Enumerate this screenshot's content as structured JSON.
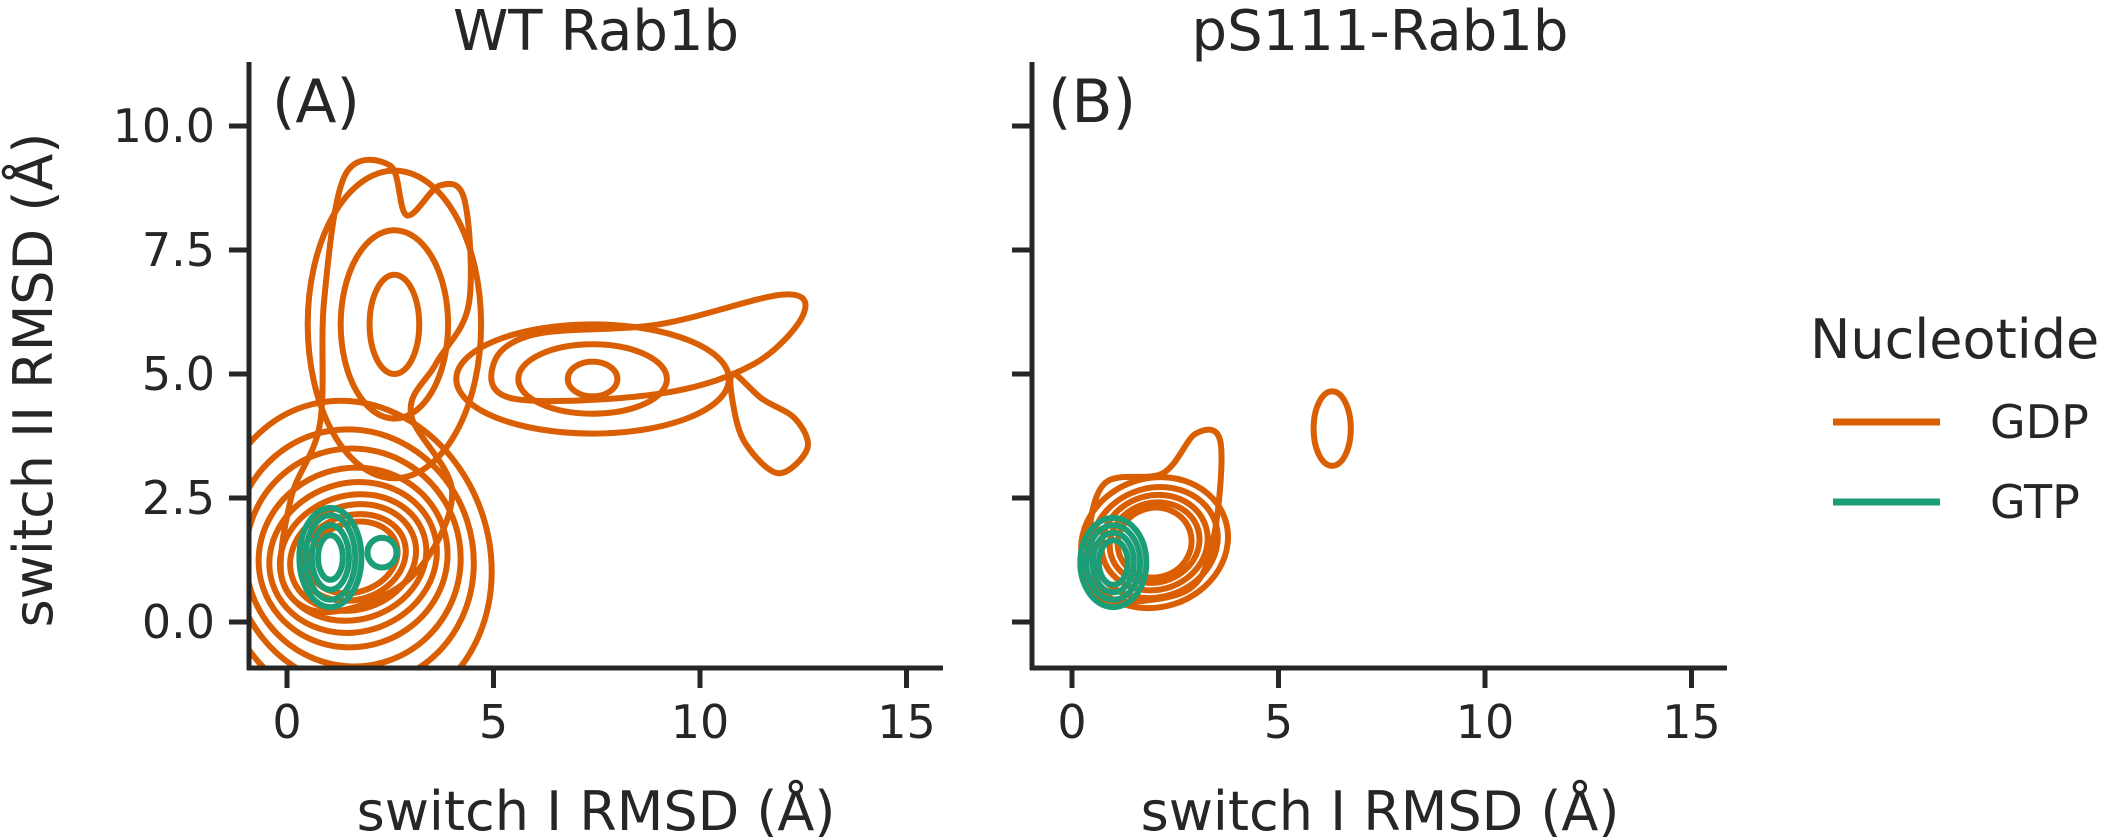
{
  "colors": {
    "GDP": "#d95f02",
    "GTP": "#1b9e77",
    "axis": "#262626"
  },
  "legend": {
    "title": "Nucleotide",
    "entries": [
      {
        "label": "GDP",
        "color": "#d95f02"
      },
      {
        "label": "GTP",
        "color": "#1b9e77"
      }
    ]
  },
  "chart_data": [
    {
      "type": "kde-contour",
      "panel_letter": "(A)",
      "title": "WT Rab1b",
      "xlabel": "switch I RMSD (Å)",
      "ylabel": "switch II RMSD (Å)",
      "xlim": [
        -0.9,
        16.0
      ],
      "ylim": [
        -1.0,
        11.2
      ],
      "xticks": [
        0,
        5,
        10,
        15
      ],
      "yticks": [
        0.0,
        2.5,
        5.0,
        7.5,
        10.0
      ],
      "yticklabels": [
        "0.0",
        "2.5",
        "5.0",
        "7.5",
        "10.0"
      ],
      "series": [
        {
          "name": "GDP",
          "modes": [
            {
              "center": [
                1.6,
                1.3
              ],
              "levels": [
                [
                  1.1,
                  0.7
                ],
                [
                  1.3,
                  0.85
                ],
                [
                  1.55,
                  1.05
                ],
                [
                  1.8,
                  1.25
                ],
                [
                  2.05,
                  1.5
                ],
                [
                  2.3,
                  1.8
                ],
                [
                  2.6,
                  2.2
                ],
                [
                  2.9,
                  2.6
                ],
                [
                  3.3,
                  3.2
                ]
              ]
            },
            {
              "center": [
                2.6,
                6.0
              ],
              "levels": [
                [
                  0.6,
                  1.0
                ],
                [
                  1.3,
                  1.9
                ],
                [
                  2.1,
                  3.1
                ]
              ]
            },
            {
              "center": [
                7.4,
                4.9
              ],
              "levels": [
                [
                  0.6,
                  0.35
                ],
                [
                  1.8,
                  0.7
                ],
                [
                  3.3,
                  1.1
                ]
              ]
            }
          ],
          "outer_contour": [
            [
              1.0,
              0.2
            ],
            [
              3.0,
              0.9
            ],
            [
              4.0,
              2.6
            ],
            [
              3.0,
              4.2
            ],
            [
              3.6,
              5.2
            ],
            [
              4.4,
              6.4
            ],
            [
              4.3,
              8.5
            ],
            [
              3.7,
              8.8
            ],
            [
              2.9,
              8.2
            ],
            [
              2.5,
              9.2
            ],
            [
              1.4,
              9.0
            ],
            [
              0.9,
              6.5
            ],
            [
              0.8,
              4.0
            ],
            [
              0.1,
              2.5
            ],
            [
              -0.1,
              0.8
            ]
          ],
          "far_contour": [
            [
              5.5,
              4.5
            ],
            [
              9.0,
              4.6
            ],
            [
              11.3,
              5.2
            ],
            [
              12.5,
              6.2
            ],
            [
              12.0,
              6.6
            ],
            [
              9.0,
              6.0
            ],
            [
              6.0,
              5.8
            ],
            [
              5.0,
              5.2
            ]
          ],
          "tail_contour": [
            [
              10.8,
              5.0
            ],
            [
              11.5,
              4.5
            ],
            [
              12.3,
              4.1
            ],
            [
              12.6,
              3.5
            ],
            [
              11.9,
              3.0
            ],
            [
              11.1,
              3.6
            ],
            [
              10.8,
              4.4
            ]
          ]
        },
        {
          "name": "GTP",
          "modes": [
            {
              "center": [
                1.05,
                1.3
              ],
              "levels": [
                [
                  0.3,
                  0.45
                ],
                [
                  0.45,
                  0.65
                ],
                [
                  0.6,
                  0.85
                ],
                [
                  0.75,
                  1.0
                ]
              ],
              "filled": true
            },
            {
              "center": [
                2.3,
                1.4
              ],
              "levels": [
                [
                  0.35,
                  0.3
                ]
              ]
            }
          ]
        }
      ]
    },
    {
      "type": "kde-contour",
      "panel_letter": "(B)",
      "title": "pS111-Rab1b",
      "xlabel": "switch I RMSD (Å)",
      "xlim": [
        -0.9,
        16.0
      ],
      "ylim": [
        -1.0,
        11.2
      ],
      "xticks": [
        0,
        5,
        10,
        15
      ],
      "yticks": [
        0.0,
        2.5,
        5.0,
        7.5,
        10.0
      ],
      "series": [
        {
          "name": "GDP",
          "modes": [
            {
              "center": [
                2.0,
                1.6
              ],
              "levels": [
                [
                  0.9,
                  0.7
                ],
                [
                  1.1,
                  0.8
                ],
                [
                  1.3,
                  0.95
                ],
                [
                  1.55,
                  1.1
                ],
                [
                  1.8,
                  1.3
                ]
              ]
            },
            {
              "center": [
                6.3,
                3.9
              ],
              "levels": [
                [
                  0.45,
                  0.75
                ]
              ]
            }
          ],
          "outer_contour": [
            [
              0.6,
              0.5
            ],
            [
              2.7,
              0.6
            ],
            [
              3.4,
              1.6
            ],
            [
              3.6,
              3.6
            ],
            [
              3.0,
              3.8
            ],
            [
              2.2,
              3.0
            ],
            [
              0.8,
              2.8
            ],
            [
              0.4,
              1.6
            ]
          ]
        },
        {
          "name": "GTP",
          "modes": [
            {
              "center": [
                1.0,
                1.2
              ],
              "levels": [
                [
                  0.35,
                  0.45
                ],
                [
                  0.5,
                  0.6
                ],
                [
                  0.65,
                  0.75
                ],
                [
                  0.8,
                  0.9
                ]
              ],
              "filled": true
            }
          ]
        }
      ]
    }
  ]
}
